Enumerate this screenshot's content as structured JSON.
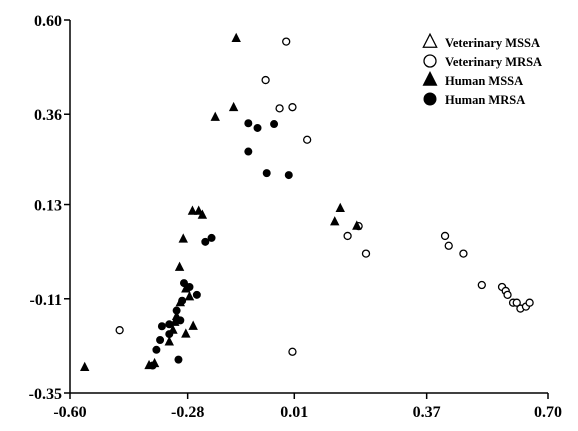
{
  "chart_data": {
    "type": "scatter",
    "title": "",
    "xlabel": "",
    "ylabel": "",
    "xlim": [
      -0.6,
      0.7
    ],
    "ylim": [
      -0.35,
      0.6
    ],
    "x_ticks": [
      "-0.60",
      "-0.28",
      "0.01",
      "0.37",
      "0.70"
    ],
    "x_tick_values": [
      -0.6,
      -0.28,
      0.01,
      0.37,
      0.7
    ],
    "y_ticks": [
      "0.60",
      "0.36",
      "0.13",
      "-0.11",
      "-0.35"
    ],
    "y_tick_values": [
      0.6,
      0.36,
      0.13,
      -0.11,
      -0.35
    ],
    "legend_position": "top-right",
    "grid": false,
    "series": [
      {
        "name": "Veterinary MSSA",
        "marker": "triangle-open",
        "color": "#000000",
        "points": []
      },
      {
        "name": "Veterinary MRSA",
        "marker": "circle-open",
        "color": "#000000",
        "points": [
          [
            -0.068,
            0.447
          ],
          [
            -0.03,
            0.375
          ],
          [
            -0.012,
            0.545
          ],
          [
            0.005,
            0.378
          ],
          [
            0.045,
            0.295
          ],
          [
            0.155,
            0.05
          ],
          [
            0.185,
            0.075
          ],
          [
            0.205,
            0.005
          ],
          [
            0.005,
            -0.245
          ],
          [
            0.42,
            0.05
          ],
          [
            0.43,
            0.025
          ],
          [
            0.47,
            0.005
          ],
          [
            0.52,
            -0.075
          ],
          [
            0.575,
            -0.08
          ],
          [
            0.585,
            -0.09
          ],
          [
            0.59,
            -0.1
          ],
          [
            0.605,
            -0.12
          ],
          [
            0.615,
            -0.12
          ],
          [
            0.625,
            -0.135
          ],
          [
            0.64,
            -0.13
          ],
          [
            0.65,
            -0.12
          ],
          [
            -0.465,
            -0.19
          ]
        ]
      },
      {
        "name": "Human MSSA",
        "marker": "triangle-filled",
        "color": "#000000",
        "points": [
          [
            -0.148,
            0.553
          ],
          [
            -0.155,
            0.377
          ],
          [
            -0.205,
            0.352
          ],
          [
            0.12,
            0.086
          ],
          [
            0.135,
            0.12
          ],
          [
            0.18,
            0.075
          ],
          [
            -0.267,
            0.113
          ],
          [
            -0.25,
            0.113
          ],
          [
            -0.24,
            0.103
          ],
          [
            -0.292,
            0.042
          ],
          [
            -0.302,
            -0.03
          ],
          [
            -0.285,
            -0.085
          ],
          [
            -0.275,
            -0.105
          ],
          [
            -0.265,
            -0.18
          ],
          [
            -0.285,
            -0.2
          ],
          [
            -0.3,
            -0.12
          ],
          [
            -0.31,
            -0.155
          ],
          [
            -0.315,
            -0.17
          ],
          [
            -0.32,
            -0.19
          ],
          [
            -0.37,
            -0.275
          ],
          [
            -0.385,
            -0.28
          ],
          [
            -0.33,
            -0.22
          ],
          [
            -0.56,
            -0.285
          ]
        ]
      },
      {
        "name": "Human MRSA",
        "marker": "circle-filled",
        "color": "#000000",
        "points": [
          [
            -0.115,
            0.337
          ],
          [
            -0.09,
            0.325
          ],
          [
            -0.045,
            0.335
          ],
          [
            -0.115,
            0.265
          ],
          [
            -0.065,
            0.21
          ],
          [
            -0.005,
            0.205
          ],
          [
            -0.215,
            0.045
          ],
          [
            -0.232,
            0.035
          ],
          [
            -0.29,
            -0.07
          ],
          [
            -0.275,
            -0.08
          ],
          [
            -0.255,
            -0.1
          ],
          [
            -0.295,
            -0.115
          ],
          [
            -0.31,
            -0.14
          ],
          [
            -0.3,
            -0.165
          ],
          [
            -0.33,
            -0.175
          ],
          [
            -0.35,
            -0.18
          ],
          [
            -0.33,
            -0.2
          ],
          [
            -0.355,
            -0.215
          ],
          [
            -0.365,
            -0.24
          ],
          [
            -0.305,
            -0.265
          ],
          [
            -0.375,
            -0.28
          ]
        ]
      }
    ]
  }
}
